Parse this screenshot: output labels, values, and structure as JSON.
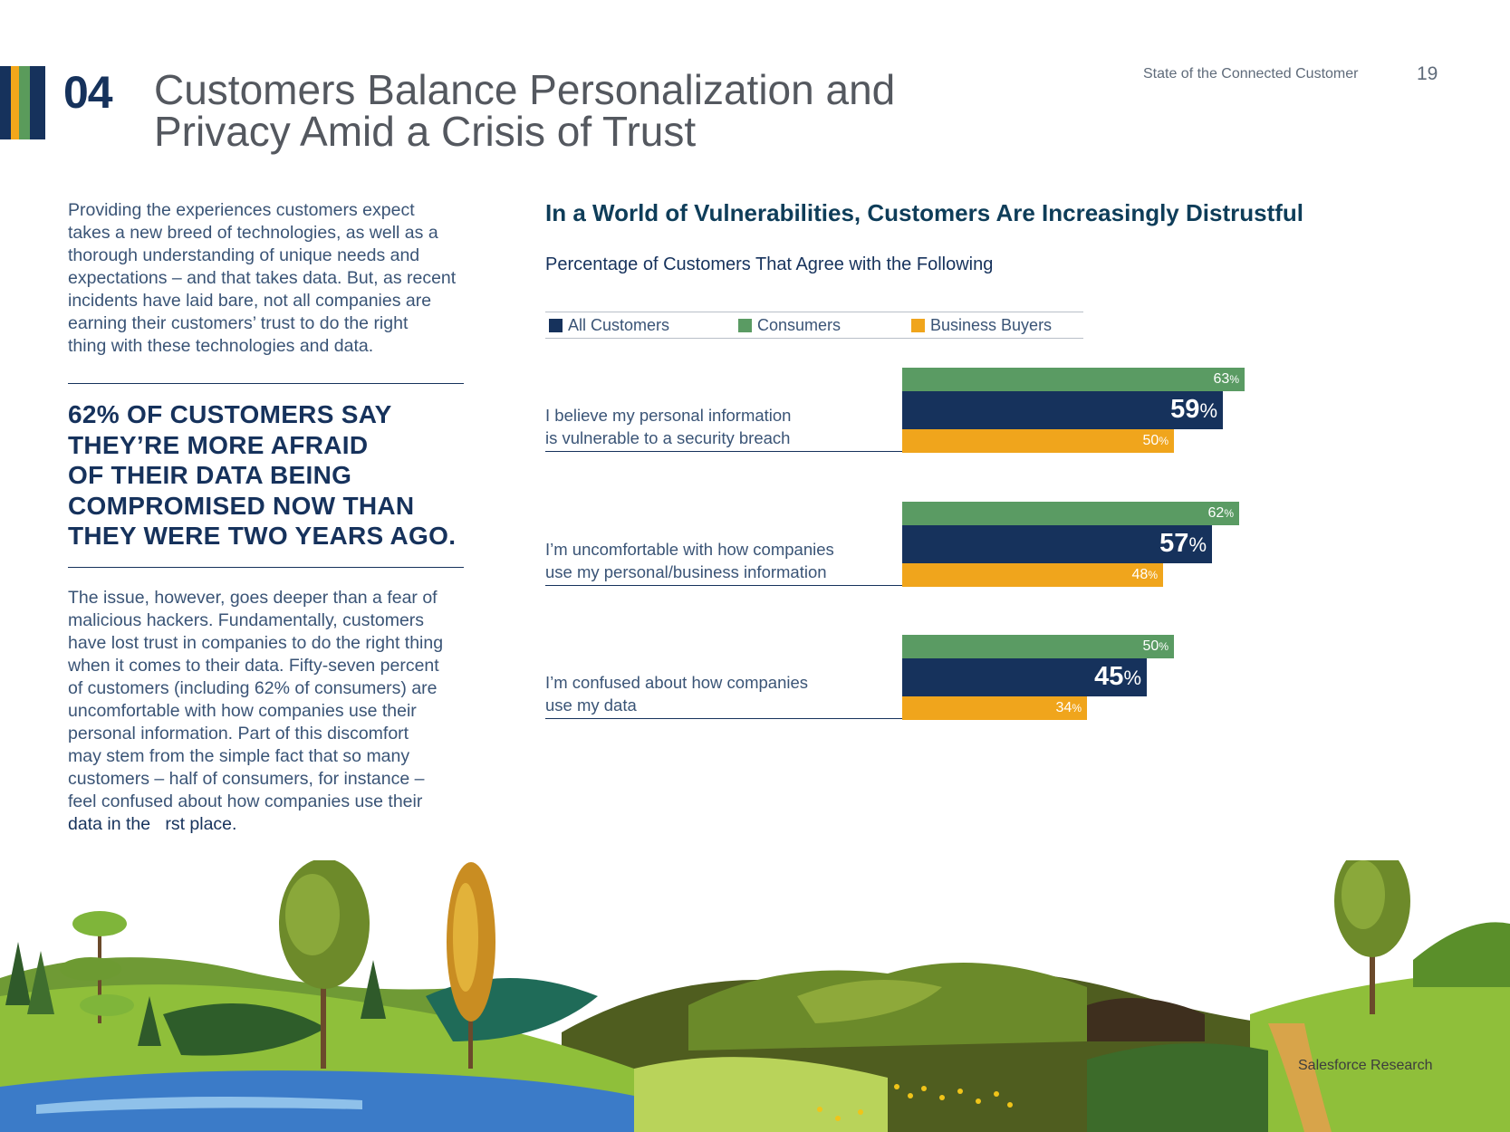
{
  "header": {
    "section_number": "04",
    "title_line1": "Customers Balance Personalization and",
    "title_line2": "Privacy Amid a Crisis of Trust",
    "publication": "State of the Connected Customer",
    "page_number": "19",
    "stripe_colors": [
      "#16325c",
      "#f2a71b",
      "#5a9b5b",
      "#16325c"
    ]
  },
  "left": {
    "intro_lines": [
      "Providing the experiences customers expect",
      "takes a new breed of technologies, as well as a",
      "thorough understanding of unique needs and",
      "expectations – and that takes data. But, as recent",
      "incidents have laid bare, not all companies are",
      "earning their customers’ trust to do the right",
      "thing with these technologies and data."
    ],
    "callout_lines": [
      "62% of customers say",
      "they’re more afraid",
      "of their data being",
      "compromised now than",
      "they were two years ago."
    ],
    "body_lines": [
      "The issue, however, goes deeper than a fear of",
      "malicious hackers. Fundamentally, customers",
      "have lost trust in companies to do the right thing",
      "when it comes to their data. Fifty-seven percent",
      "of customers (including 62% of consumers) are",
      "uncomfortable with how companies use their",
      "personal information. Part of this discomfort",
      "may stem from the simple fact that so many",
      "customers – half of consumers, for instance –",
      "feel confused about how companies use their"
    ],
    "body_tail": "data in the   rst place."
  },
  "chart_data": {
    "type": "bar",
    "orientation": "horizontal",
    "title": "In a World of Vulnerabilities, Customers Are Increasingly Distrustful",
    "subtitle": "Percentage of Customers That Agree with the Following",
    "legend_position": "top",
    "unit": "%",
    "categories": [
      [
        "I believe my personal information",
        "is vulnerable to a security breach"
      ],
      [
        "I’m uncomfortable with how companies",
        "use my personal/business information"
      ],
      [
        "I’m confused about how companies",
        "use my data"
      ]
    ],
    "series": [
      {
        "name": "All Customers",
        "color": "#16325c",
        "values": [
          59,
          57,
          45
        ]
      },
      {
        "name": "Consumers",
        "color": "#5a9b63",
        "values": [
          63,
          62,
          50
        ]
      },
      {
        "name": "Business Buyers",
        "color": "#f0a51c",
        "values": [
          50,
          48,
          34
        ]
      }
    ],
    "bar_order": [
      "Consumers",
      "All Customers",
      "Business Buyers"
    ],
    "xlim": [
      0,
      100
    ],
    "grid": false
  },
  "footer": {
    "credit": "Salesforce Research"
  }
}
